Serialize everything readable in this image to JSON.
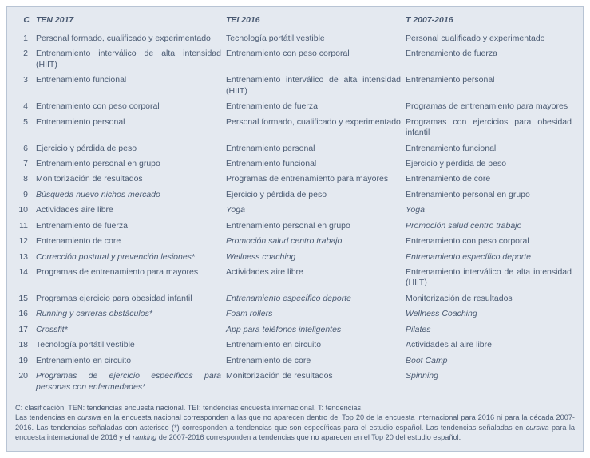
{
  "colors": {
    "tableBg": "#e4e9f0",
    "border": "#b8c4d4",
    "text": "#4a5a72",
    "pageBg": "#ffffff"
  },
  "typography": {
    "headerFontSize": 10.5,
    "cellFontSize": 10.5,
    "footerFontSize": 9.2,
    "fontFamily": "Arial"
  },
  "layout": {
    "widthPx": 723,
    "colWidths": {
      "c": 24,
      "col1": 238,
      "col2": 225,
      "col3": 214
    }
  },
  "headers": {
    "c": "C",
    "col1": "TEN 2017",
    "col2": "TEI 2016",
    "col3": "T 2007-2016"
  },
  "rows": [
    {
      "c": "1",
      "a": {
        "t": "Personal formado, cualificado y experimentado",
        "i": false,
        "j": true
      },
      "b": {
        "t": "Tecnología portátil vestible",
        "i": false
      },
      "d": {
        "t": "Personal cualificado y experimentado",
        "i": false
      }
    },
    {
      "c": "2",
      "a": {
        "t": "Entrenamiento interválico de alta intensidad (HIIT)",
        "i": false,
        "j": true
      },
      "b": {
        "t": "Entrenamiento con peso corporal",
        "i": false
      },
      "d": {
        "t": "Entrenamiento de fuerza",
        "i": false
      }
    },
    {
      "c": "3",
      "a": {
        "t": "Entrenamiento funcional",
        "i": false
      },
      "b": {
        "t": "Entrenamiento interválico de alta intensidad (HIIT)",
        "i": false,
        "j": true
      },
      "d": {
        "t": "Entrenamiento personal",
        "i": false
      }
    },
    {
      "c": "4",
      "a": {
        "t": "Entrenamiento con peso corporal",
        "i": false
      },
      "b": {
        "t": "Entrenamiento de fuerza",
        "i": false
      },
      "d": {
        "t": "Programas de entrenamiento para mayores",
        "i": false
      }
    },
    {
      "c": "5",
      "a": {
        "t": "Entrenamiento personal",
        "i": false
      },
      "b": {
        "t": "Personal formado, cualificado y experimentado",
        "i": false,
        "j": true
      },
      "d": {
        "t": "Programas con ejercicios para obesidad infantil",
        "i": false,
        "j": true
      }
    },
    {
      "c": "6",
      "a": {
        "t": "Ejercicio y pérdida de peso",
        "i": false
      },
      "b": {
        "t": "Entrenamiento personal",
        "i": false
      },
      "d": {
        "t": "Entrenamiento funcional",
        "i": false
      }
    },
    {
      "c": "7",
      "a": {
        "t": "Entrenamiento personal en grupo",
        "i": false
      },
      "b": {
        "t": "Entrenamiento funcional",
        "i": false
      },
      "d": {
        "t": "Ejercicio y pérdida de peso",
        "i": false
      }
    },
    {
      "c": "8",
      "a": {
        "t": "Monitorización de resultados",
        "i": false
      },
      "b": {
        "t": "Programas de entrenamiento para mayores",
        "i": false
      },
      "d": {
        "t": "Entrenamiento de core",
        "i": false
      }
    },
    {
      "c": "9",
      "a": {
        "t": "Búsqueda nuevo nichos mercado",
        "i": true
      },
      "b": {
        "t": "Ejercicio y pérdida de peso",
        "i": false
      },
      "d": {
        "t": "Entrenamiento personal en grupo",
        "i": false
      }
    },
    {
      "c": "10",
      "a": {
        "t": "Actividades aire libre",
        "i": false
      },
      "b": {
        "t": "Yoga",
        "i": true
      },
      "d": {
        "t": "Yoga",
        "i": true
      }
    },
    {
      "c": "11",
      "a": {
        "t": "Entrenamiento de fuerza",
        "i": false
      },
      "b": {
        "t": "Entrenamiento personal en grupo",
        "i": false
      },
      "d": {
        "t": "Promoción salud centro trabajo",
        "i": true
      }
    },
    {
      "c": "12",
      "a": {
        "t": "Entrenamiento de core",
        "i": false
      },
      "b": {
        "t": "Promoción salud centro trabajo",
        "i": true
      },
      "d": {
        "t": "Entrenamiento con peso corporal",
        "i": false
      }
    },
    {
      "c": "13",
      "a": {
        "t": "Corrección postural y prevención lesiones*",
        "i": true
      },
      "b": {
        "t": "Wellness coaching",
        "i": true
      },
      "d": {
        "t": "Entrenamiento específico deporte",
        "i": true
      }
    },
    {
      "c": "14",
      "a": {
        "t": "Programas de entrenamiento para mayores",
        "i": false
      },
      "b": {
        "t": "Actividades aire libre",
        "i": false
      },
      "d": {
        "t": "Entrenamiento interválico de alta intensidad (HIIT)",
        "i": false,
        "j": true
      }
    },
    {
      "c": "15",
      "a": {
        "t": "Programas ejercicio para obesidad infantil",
        "i": false
      },
      "b": {
        "t": "Entrenamiento específico deporte",
        "i": true
      },
      "d": {
        "t": "Monitorización de resultados",
        "i": false
      }
    },
    {
      "c": "16",
      "a": {
        "t": "Running y carreras obstáculos*",
        "i": true
      },
      "b": {
        "t": "Foam rollers",
        "i": true
      },
      "d": {
        "t": "Wellness Coaching",
        "i": true
      }
    },
    {
      "c": "17",
      "a": {
        "t": "Crossfit*",
        "i": true
      },
      "b": {
        "t": "App para teléfonos inteligentes",
        "i": true
      },
      "d": {
        "t": "Pilates",
        "i": true
      }
    },
    {
      "c": "18",
      "a": {
        "t": "Tecnología portátil vestible",
        "i": false
      },
      "b": {
        "t": "Entrenamiento en circuito",
        "i": false
      },
      "d": {
        "t": "Actividades al aire libre",
        "i": false
      }
    },
    {
      "c": "19",
      "a": {
        "t": "Entrenamiento en circuito",
        "i": false
      },
      "b": {
        "t": "Entrenamiento de core",
        "i": false
      },
      "d": {
        "t": "Boot Camp",
        "i": true
      }
    },
    {
      "c": "20",
      "a": {
        "t": "Programas de ejercicio específicos para personas con enfermedades*",
        "i": true,
        "j": true
      },
      "b": {
        "t": "Monitorización de resultados",
        "i": false
      },
      "d": {
        "t": "Spinning",
        "i": true
      }
    }
  ],
  "footer": {
    "line1": "C: clasificación. TEN: tendencias encuesta nacional. TEI: tendencias encuesta internacional. T: tendencias.",
    "line2": "Las tendencias en cursiva en la encuesta nacional corresponden a las que no aparecen dentro del Top 20 de la encuesta internacional para 2016 ni para la década 2007-2016. Las tendencias señaladas con asterisco (*) corresponden a tendencias que son específicas para el estudio español. Las tendencias señaladas en cursiva para la encuesta internacional de 2016 y el ranking de 2007-2016 corresponden a tendencias que no aparecen en el Top 20 del estudio español."
  }
}
